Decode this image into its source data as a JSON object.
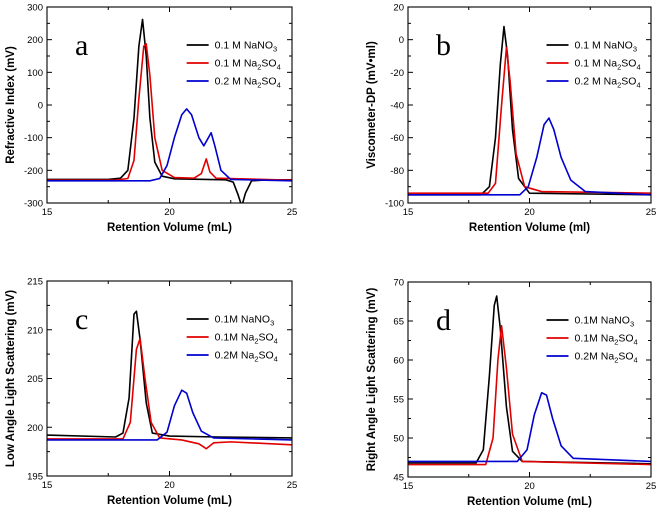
{
  "chart_data": [
    {
      "id": "a",
      "type": "line",
      "panel_label": "a",
      "xlabel": "Retention Volume (mL)",
      "ylabel": "Refractive Index (mV)",
      "xlim": [
        15,
        25
      ],
      "ylim": [
        -300,
        300
      ],
      "xticks": [
        15,
        20,
        25
      ],
      "yticks": [
        -300,
        -200,
        -100,
        0,
        100,
        200,
        300
      ],
      "legend_position": "top-right",
      "series": [
        {
          "name": "0.1 M NaNO3",
          "label": "0.1 M NaNO",
          "sub": "3",
          "tail": "",
          "color": "#000000",
          "points": [
            [
              15,
              -228
            ],
            [
              17.5,
              -228
            ],
            [
              18.0,
              -224
            ],
            [
              18.3,
              -200
            ],
            [
              18.55,
              -40
            ],
            [
              18.75,
              180
            ],
            [
              18.9,
              262
            ],
            [
              19.05,
              150
            ],
            [
              19.2,
              -40
            ],
            [
              19.4,
              -175
            ],
            [
              19.7,
              -218
            ],
            [
              20.2,
              -226
            ],
            [
              21.5,
              -228
            ],
            [
              22.3,
              -229
            ],
            [
              22.6,
              -236
            ],
            [
              22.8,
              -275
            ],
            [
              22.95,
              -310
            ],
            [
              23.1,
              -270
            ],
            [
              23.35,
              -232
            ],
            [
              24,
              -229
            ],
            [
              25,
              -229
            ]
          ]
        },
        {
          "name": "0.1 M Na2SO4",
          "label": "0.1 M Na",
          "sub": "2",
          "tail": "SO",
          "sub2": "4",
          "color": "#e00000",
          "points": [
            [
              15,
              -230
            ],
            [
              17.8,
              -230
            ],
            [
              18.3,
              -225
            ],
            [
              18.55,
              -170
            ],
            [
              18.75,
              20
            ],
            [
              18.95,
              180
            ],
            [
              19.05,
              187
            ],
            [
              19.2,
              90
            ],
            [
              19.4,
              -100
            ],
            [
              19.7,
              -200
            ],
            [
              20.2,
              -222
            ],
            [
              21.0,
              -224
            ],
            [
              21.3,
              -210
            ],
            [
              21.5,
              -165
            ],
            [
              21.65,
              -205
            ],
            [
              21.9,
              -224
            ],
            [
              25,
              -230
            ]
          ]
        },
        {
          "name": "0.2 M Na2SO4",
          "label": "0.2 M Na",
          "sub": "2",
          "tail": "SO",
          "sub2": "4",
          "color": "#0000d0",
          "points": [
            [
              15,
              -232
            ],
            [
              19.2,
              -232
            ],
            [
              19.6,
              -225
            ],
            [
              19.9,
              -185
            ],
            [
              20.2,
              -100
            ],
            [
              20.5,
              -30
            ],
            [
              20.7,
              -12
            ],
            [
              20.9,
              -30
            ],
            [
              21.2,
              -100
            ],
            [
              21.4,
              -125
            ],
            [
              21.55,
              -105
            ],
            [
              21.7,
              -85
            ],
            [
              21.85,
              -125
            ],
            [
              22.1,
              -200
            ],
            [
              22.5,
              -228
            ],
            [
              25,
              -232
            ]
          ]
        }
      ]
    },
    {
      "id": "b",
      "type": "line",
      "panel_label": "b",
      "xlabel": "Retention Volume (ml)",
      "ylabel": "Viscometer-DP (mV•ml)",
      "xlim": [
        15,
        25
      ],
      "ylim": [
        -100,
        20
      ],
      "xticks": [
        15,
        20,
        25
      ],
      "yticks": [
        -100,
        -80,
        -60,
        -40,
        -20,
        0,
        20
      ],
      "legend_position": "top-right",
      "series": [
        {
          "name": "0.1 M NaNO3",
          "label": "0.1 M NaNO",
          "sub": "3",
          "tail": "",
          "color": "#000000",
          "points": [
            [
              15,
              -95
            ],
            [
              18.0,
              -95
            ],
            [
              18.35,
              -90
            ],
            [
              18.6,
              -60
            ],
            [
              18.8,
              -15
            ],
            [
              18.95,
              8
            ],
            [
              19.1,
              -10
            ],
            [
              19.3,
              -55
            ],
            [
              19.55,
              -85
            ],
            [
              20.0,
              -94
            ],
            [
              25,
              -95
            ]
          ]
        },
        {
          "name": "0.1 M Na2SO4",
          "label": "0.1 M Na",
          "sub": "2",
          "tail": "SO",
          "sub2": "4",
          "color": "#e00000",
          "points": [
            [
              15,
              -94
            ],
            [
              18.3,
              -94
            ],
            [
              18.6,
              -88
            ],
            [
              18.85,
              -40
            ],
            [
              19.05,
              -5
            ],
            [
              19.2,
              -25
            ],
            [
              19.45,
              -70
            ],
            [
              19.8,
              -90
            ],
            [
              20.5,
              -93
            ],
            [
              25,
              -94
            ]
          ]
        },
        {
          "name": "0.2 M Na2SO4",
          "label": "0.2 M Na",
          "sub": "2",
          "tail": "SO",
          "sub2": "4",
          "color": "#0000d0",
          "points": [
            [
              15,
              -95
            ],
            [
              19.6,
              -95
            ],
            [
              19.95,
              -90
            ],
            [
              20.3,
              -72
            ],
            [
              20.6,
              -52
            ],
            [
              20.8,
              -48
            ],
            [
              21.0,
              -55
            ],
            [
              21.3,
              -72
            ],
            [
              21.7,
              -86
            ],
            [
              22.3,
              -93
            ],
            [
              25,
              -95
            ]
          ]
        }
      ]
    },
    {
      "id": "c",
      "type": "line",
      "panel_label": "c",
      "xlabel": "Retention Volume (mL)",
      "ylabel": "Low Angle Light Scattering (mV)",
      "xlim": [
        15,
        25
      ],
      "ylim": [
        195,
        215
      ],
      "xticks": [
        15,
        20,
        25
      ],
      "yticks": [
        195,
        200,
        205,
        210,
        215
      ],
      "legend_position": "top-right",
      "series": [
        {
          "name": "0.1M NaNO3",
          "label": "0.1M NaNO",
          "sub": "3",
          "tail": "",
          "color": "#000000",
          "points": [
            [
              15,
              199.2
            ],
            [
              17.8,
              199.0
            ],
            [
              18.1,
              199.4
            ],
            [
              18.35,
              203
            ],
            [
              18.55,
              211.6
            ],
            [
              18.65,
              211.9
            ],
            [
              18.8,
              209
            ],
            [
              19.05,
              202.5
            ],
            [
              19.3,
              199.4
            ],
            [
              20,
              199.1
            ],
            [
              22,
              199.0
            ],
            [
              25,
              198.9
            ]
          ]
        },
        {
          "name": "0.1M Na2SO4",
          "label": "0.1M Na",
          "sub": "2",
          "tail": "SO",
          "sub2": "4",
          "color": "#e00000",
          "points": [
            [
              15,
              198.8
            ],
            [
              18.1,
              198.8
            ],
            [
              18.4,
              200.5
            ],
            [
              18.65,
              208
            ],
            [
              18.8,
              209.1
            ],
            [
              19.0,
              205
            ],
            [
              19.25,
              200.5
            ],
            [
              19.6,
              198.9
            ],
            [
              20.5,
              198.7
            ],
            [
              21.2,
              198.3
            ],
            [
              21.5,
              197.8
            ],
            [
              21.8,
              198.4
            ],
            [
              22.5,
              198.5
            ],
            [
              25,
              198.2
            ]
          ]
        },
        {
          "name": "0.2M Na2SO4",
          "label": "0.2M Na",
          "sub": "2",
          "tail": "SO",
          "sub2": "4",
          "color": "#0000d0",
          "points": [
            [
              15,
              198.7
            ],
            [
              19.5,
              198.7
            ],
            [
              19.9,
              199.5
            ],
            [
              20.2,
              202.2
            ],
            [
              20.5,
              203.8
            ],
            [
              20.7,
              203.5
            ],
            [
              20.95,
              201.5
            ],
            [
              21.3,
              199.6
            ],
            [
              21.8,
              198.9
            ],
            [
              25,
              198.7
            ]
          ]
        }
      ]
    },
    {
      "id": "d",
      "type": "line",
      "panel_label": "d",
      "xlabel": "Retention Volume (mL)",
      "ylabel": "Right Angle Light Scattering (mV)",
      "xlim": [
        15,
        25
      ],
      "ylim": [
        45,
        70
      ],
      "xticks": [
        15,
        20,
        25
      ],
      "yticks": [
        45,
        50,
        55,
        60,
        65,
        70
      ],
      "legend_position": "top-right",
      "series": [
        {
          "name": "0.1M NaNO3",
          "label": "0.1M NaNO",
          "sub": "3",
          "tail": "",
          "color": "#000000",
          "points": [
            [
              15,
              46.8
            ],
            [
              17.8,
              46.8
            ],
            [
              18.1,
              48.5
            ],
            [
              18.35,
              58
            ],
            [
              18.55,
              67
            ],
            [
              18.65,
              68.2
            ],
            [
              18.8,
              64
            ],
            [
              19.05,
              54
            ],
            [
              19.3,
              48.3
            ],
            [
              19.7,
              47.0
            ],
            [
              25,
              46.7
            ]
          ]
        },
        {
          "name": "0.1M Na2SO4",
          "label": "0.1M Na",
          "sub": "2",
          "tail": "SO",
          "sub2": "4",
          "color": "#e00000",
          "points": [
            [
              15,
              46.6
            ],
            [
              18.2,
              46.6
            ],
            [
              18.5,
              50
            ],
            [
              18.7,
              60
            ],
            [
              18.85,
              64.4
            ],
            [
              19.05,
              59
            ],
            [
              19.3,
              50.5
            ],
            [
              19.7,
              47.0
            ],
            [
              25,
              46.6
            ]
          ]
        },
        {
          "name": "0.2M Na2SO4",
          "label": "0.2M Na",
          "sub": "2",
          "tail": "SO",
          "sub2": "4",
          "color": "#0000d0",
          "points": [
            [
              15,
              47.0
            ],
            [
              19.5,
              47.0
            ],
            [
              19.9,
              48.5
            ],
            [
              20.2,
              53
            ],
            [
              20.5,
              55.8
            ],
            [
              20.7,
              55.5
            ],
            [
              20.95,
              52.5
            ],
            [
              21.3,
              49
            ],
            [
              21.8,
              47.4
            ],
            [
              25,
              47.0
            ]
          ]
        }
      ]
    }
  ]
}
